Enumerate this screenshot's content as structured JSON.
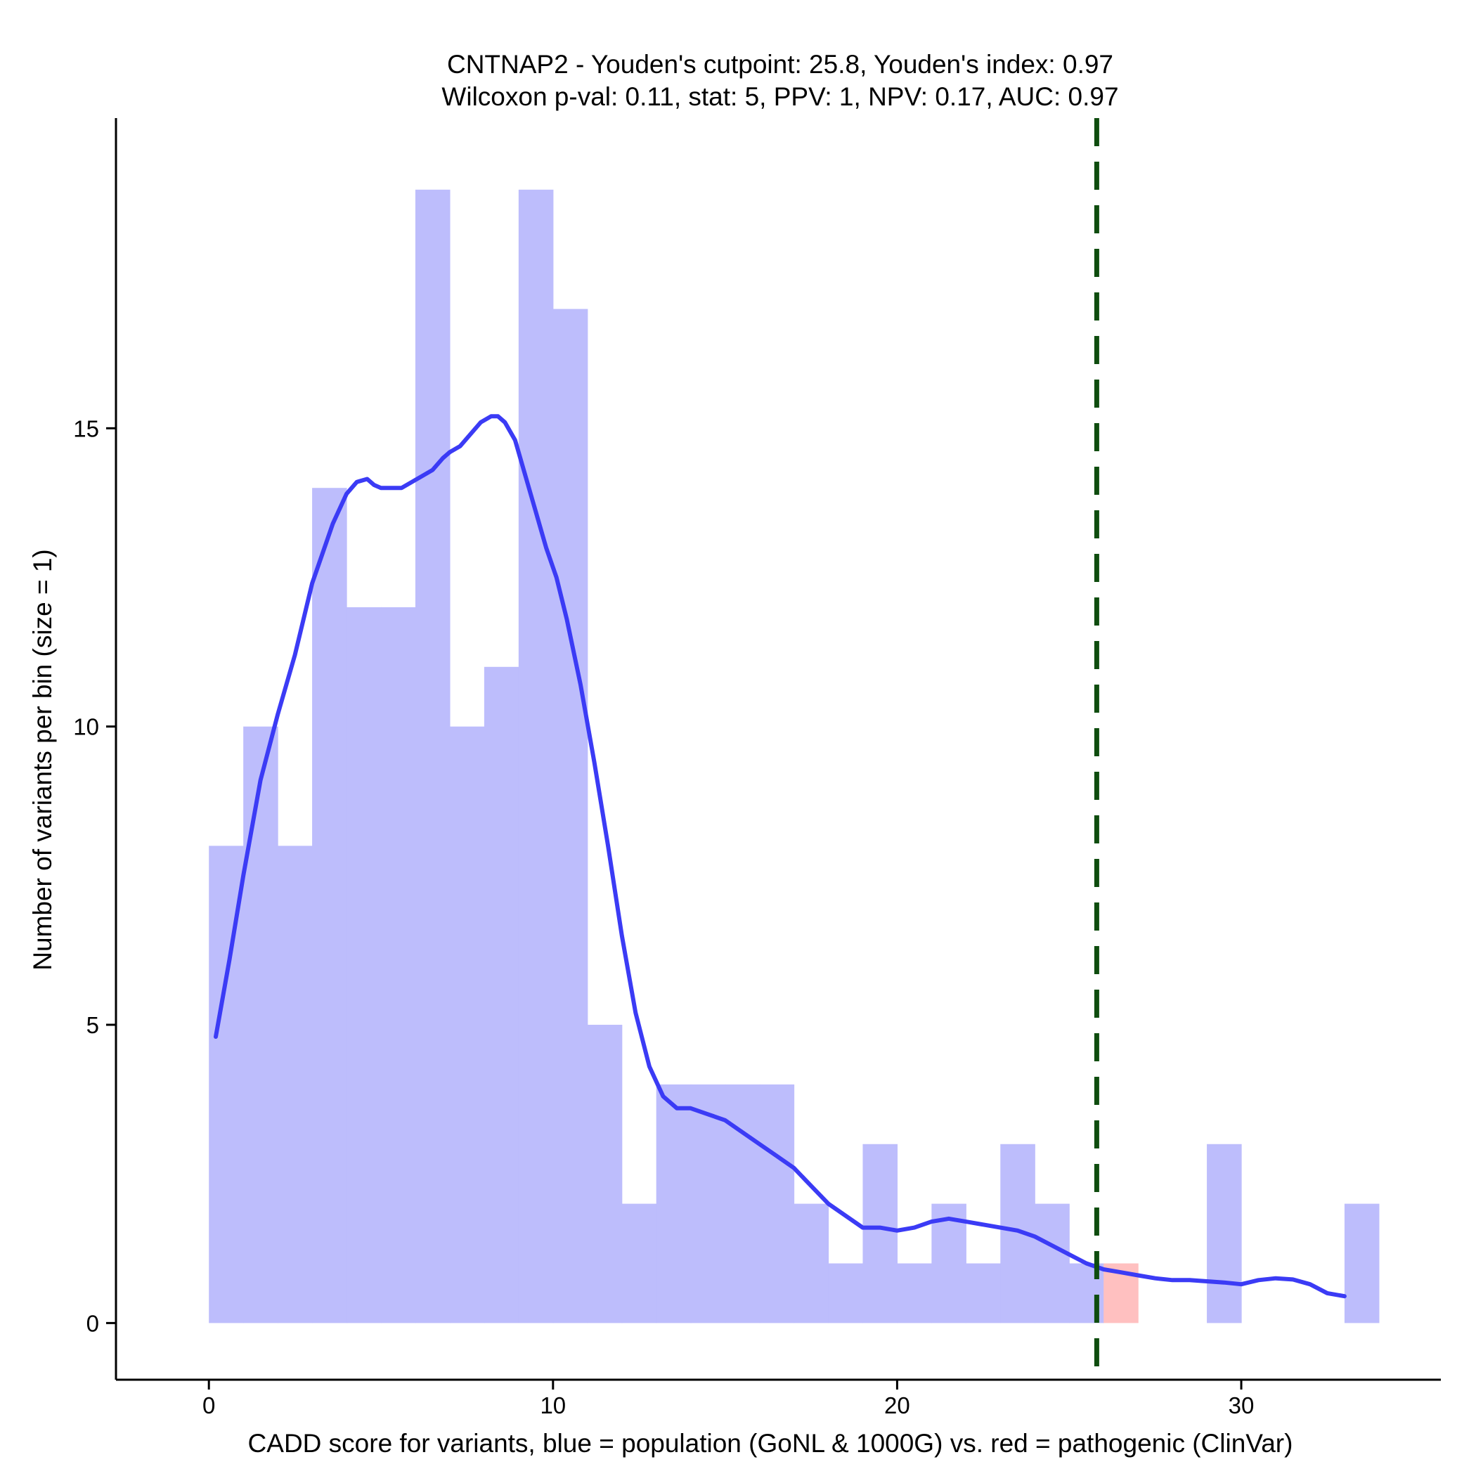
{
  "chart_data": {
    "type": "bar",
    "title": "CNTNAP2 - Youden's cutpoint: 25.8, Youden's index: 0.97",
    "subtitle": "Wilcoxon p-val: 0.11, stat: 5, PPV: 1, NPV: 0.17, AUC: 0.97",
    "xlabel": "CADD score for variants, blue = population (GoNL & 1000G) vs. red = pathogenic (ClinVar)",
    "ylabel": "Number of variants per bin (size = 1)",
    "xlim": [
      -2.7,
      35.8
    ],
    "ylim": [
      -0.95,
      20.2
    ],
    "x_ticks": [
      0,
      10,
      20,
      30
    ],
    "y_ticks": [
      0,
      5,
      10,
      15
    ],
    "bin_size": 1,
    "colors": {
      "population": "#bdbdfc",
      "pathogenic": "#ffc0c0",
      "density": "#3b3bf5",
      "cutpoint": "#0f4d0f"
    },
    "series": [
      {
        "name": "population",
        "bin_starts": [
          0,
          1,
          2,
          3,
          4,
          5,
          6,
          7,
          8,
          9,
          10,
          11,
          12,
          13,
          14,
          15,
          16,
          17,
          18,
          19,
          20,
          21,
          22,
          23,
          24,
          25,
          26,
          27,
          28,
          29,
          30,
          31,
          32,
          33
        ],
        "values": [
          8,
          10,
          8,
          14,
          12,
          12,
          19,
          10,
          11,
          19,
          17,
          5,
          2,
          4,
          4,
          4,
          4,
          2,
          1,
          3,
          1,
          2,
          1,
          3,
          2,
          1,
          0,
          0,
          0,
          3,
          0,
          0,
          0,
          2
        ]
      },
      {
        "name": "pathogenic",
        "bin_starts": [
          26
        ],
        "values": [
          1
        ]
      }
    ],
    "density_curve": {
      "x": [
        0.2,
        0.6,
        1.0,
        1.5,
        2.0,
        2.5,
        3.0,
        3.3,
        3.6,
        4.0,
        4.3,
        4.6,
        4.8,
        5.0,
        5.3,
        5.6,
        5.9,
        6.2,
        6.5,
        6.8,
        7.0,
        7.3,
        7.6,
        7.9,
        8.2,
        8.4,
        8.6,
        8.9,
        9.2,
        9.5,
        9.8,
        10.1,
        10.4,
        10.8,
        11.2,
        11.6,
        12.0,
        12.4,
        12.8,
        13.2,
        13.6,
        14.0,
        14.5,
        15.0,
        15.5,
        16.0,
        16.5,
        17.0,
        17.5,
        18.0,
        18.5,
        19.0,
        19.5,
        20.0,
        20.5,
        21.0,
        21.5,
        22.0,
        22.5,
        23.0,
        23.5,
        24.0,
        24.5,
        25.0,
        25.5,
        26.0,
        26.5,
        27.0,
        27.5,
        28.0,
        28.5,
        29.0,
        29.5,
        30.0,
        30.5,
        31.0,
        31.5,
        32.0,
        32.5,
        33.0
      ],
      "y": [
        4.8,
        6.1,
        7.5,
        9.1,
        10.2,
        11.2,
        12.4,
        12.9,
        13.4,
        13.9,
        14.1,
        14.15,
        14.05,
        14.0,
        14.0,
        14.0,
        14.1,
        14.2,
        14.3,
        14.5,
        14.6,
        14.7,
        14.9,
        15.1,
        15.2,
        15.2,
        15.1,
        14.8,
        14.2,
        13.6,
        13.0,
        12.5,
        11.8,
        10.7,
        9.4,
        8.0,
        6.5,
        5.2,
        4.3,
        3.8,
        3.6,
        3.6,
        3.5,
        3.4,
        3.2,
        3.0,
        2.8,
        2.6,
        2.3,
        2.0,
        1.8,
        1.6,
        1.6,
        1.55,
        1.6,
        1.7,
        1.75,
        1.7,
        1.65,
        1.6,
        1.55,
        1.45,
        1.3,
        1.15,
        1.0,
        0.9,
        0.85,
        0.8,
        0.75,
        0.72,
        0.72,
        0.7,
        0.68,
        0.65,
        0.72,
        0.75,
        0.73,
        0.65,
        0.5,
        0.45
      ]
    },
    "cutpoint": 25.8
  }
}
